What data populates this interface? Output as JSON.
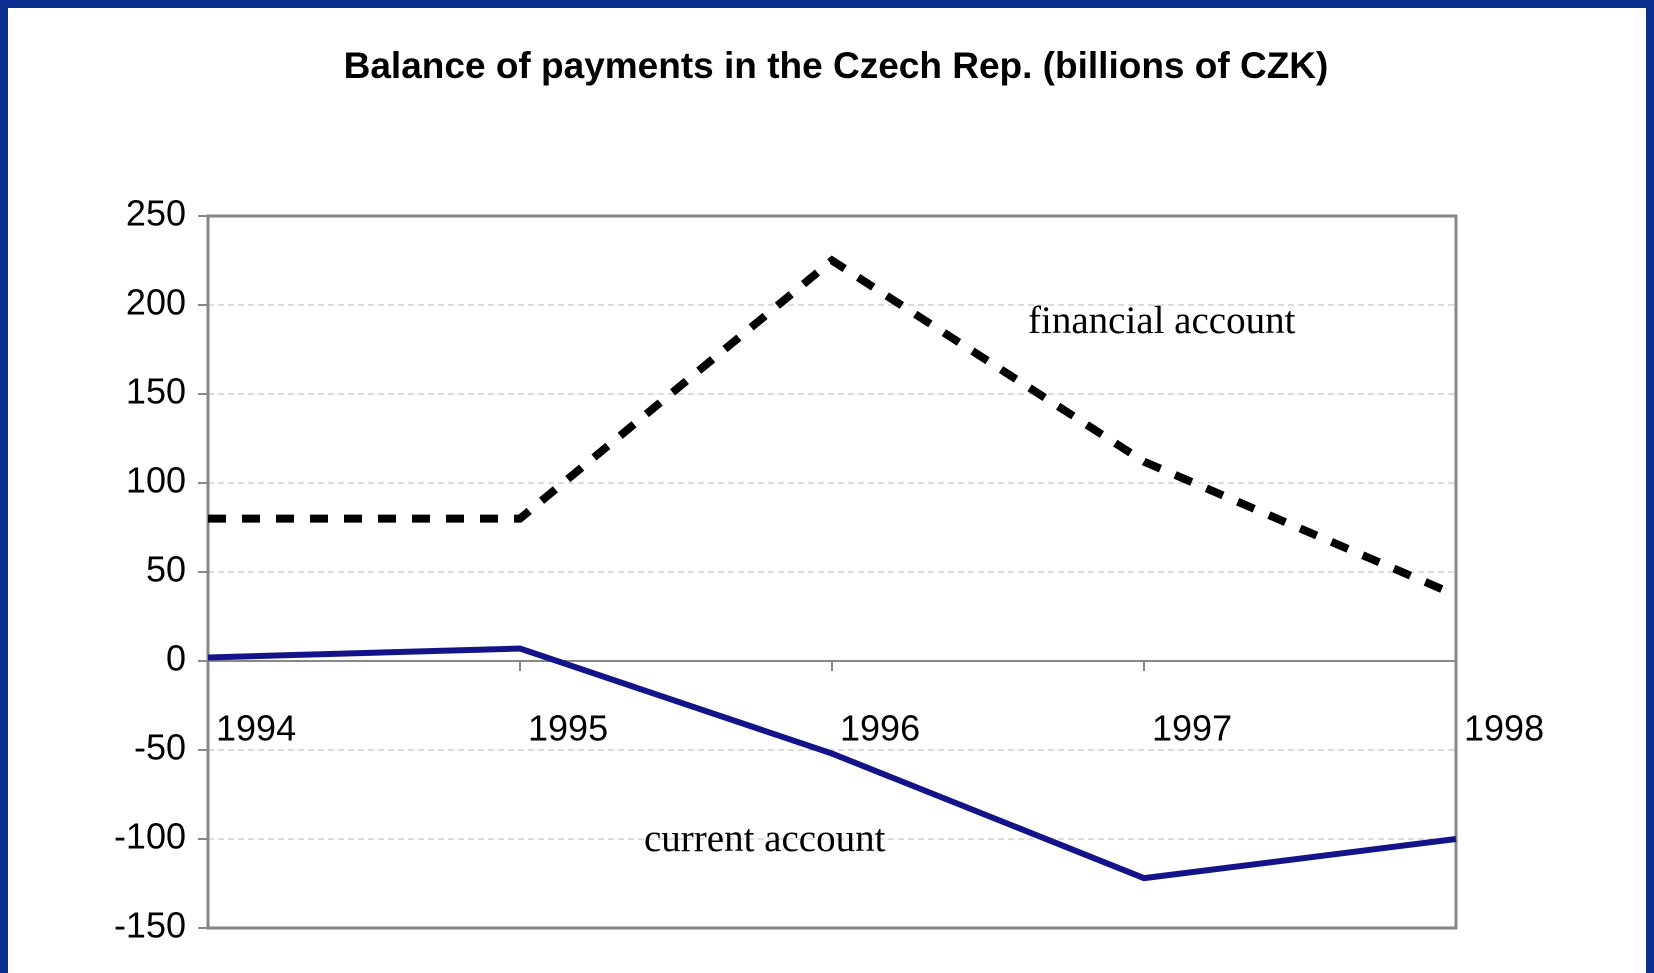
{
  "chart_data": {
    "type": "line",
    "title": "Balance of payments in the Czech Rep. (billions of CZK)",
    "categories": [
      "1994",
      "1995",
      "1996",
      "1997",
      "1998"
    ],
    "series": [
      {
        "name": "financial account",
        "color": "#000000",
        "dashed": true,
        "values": [
          80,
          80,
          225,
          112,
          37
        ]
      },
      {
        "name": "current account",
        "color": "#14148a",
        "dashed": false,
        "values": [
          2,
          7,
          -52,
          -122,
          -100
        ]
      }
    ],
    "ylim": [
      -150,
      250
    ],
    "yticks": [
      -150,
      -100,
      -50,
      0,
      50,
      100,
      150,
      200,
      250
    ],
    "grid": true
  }
}
